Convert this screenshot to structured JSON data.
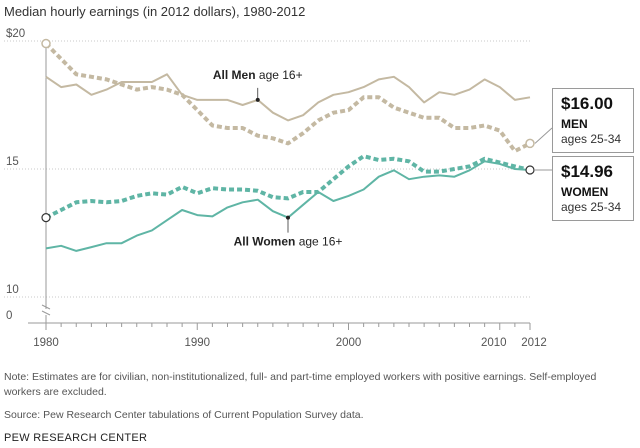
{
  "colors": {
    "men": "#c4b9a2",
    "women": "#5fb5a5",
    "frame": "#9a9a9a",
    "grid": "#c8c8c8"
  },
  "notes": {
    "note": "Note: Estimates are for civilian, non-institutionalized, full- and part-time employed workers with positive earnings. Self-employed workers are excluded.",
    "source": "Source: Pew Research Center tabulations of Current Population Survey data.",
    "credit": "PEW RESEARCH CENTER"
  },
  "callouts": {
    "men": {
      "value": "$16.00",
      "group": "MEN",
      "ages": "ages 25-34"
    },
    "women": {
      "value": "$14.96",
      "group": "WOMEN",
      "ages": "ages 25-34"
    }
  },
  "chart_data": {
    "type": "line",
    "title": "Median hourly earnings (in 2012 dollars), 1980-2012",
    "xlabel": "",
    "ylabel": "",
    "x": [
      1980,
      1981,
      1982,
      1983,
      1984,
      1985,
      1986,
      1987,
      1988,
      1989,
      1990,
      1991,
      1992,
      1993,
      1994,
      1995,
      1996,
      1997,
      1998,
      1999,
      2000,
      2001,
      2002,
      2003,
      2004,
      2005,
      2006,
      2007,
      2008,
      2009,
      2010,
      2011,
      2012
    ],
    "x_ticks": [
      {
        "value": 1980,
        "label": "1980"
      },
      {
        "value": 1990,
        "label": "1990"
      },
      {
        "value": 2000,
        "label": "2000"
      },
      {
        "value": 2010,
        "label": "2010"
      },
      {
        "value": 2012,
        "label": "2012"
      }
    ],
    "y_ticks": [
      {
        "value": 20,
        "label": "$20"
      },
      {
        "value": 15,
        "label": "15"
      },
      {
        "value": 10,
        "label": "10"
      },
      {
        "value": 0,
        "label": "0"
      }
    ],
    "ylim": [
      10,
      20
    ],
    "axis_break": true,
    "series": [
      {
        "name": "All Men age 16+",
        "style": "solid",
        "color": "#c4b9a2",
        "values": [
          18.6,
          18.2,
          18.3,
          17.9,
          18.1,
          18.4,
          18.4,
          18.4,
          18.7,
          17.9,
          17.7,
          17.7,
          17.7,
          17.5,
          17.7,
          17.2,
          16.9,
          17.1,
          17.6,
          17.9,
          18.0,
          18.2,
          18.5,
          18.6,
          18.2,
          17.6,
          18.0,
          17.9,
          18.1,
          18.5,
          18.2,
          17.7,
          17.8
        ]
      },
      {
        "name": "",
        "style": "dotted",
        "color": "#c4b9a2",
        "values": [
          19.9,
          19.3,
          18.7,
          18.6,
          18.5,
          18.3,
          18.1,
          18.2,
          18.1,
          17.9,
          17.3,
          16.7,
          16.6,
          16.6,
          16.3,
          16.2,
          16.0,
          16.4,
          16.9,
          17.2,
          17.3,
          17.8,
          17.8,
          17.4,
          17.2,
          17.0,
          17.0,
          16.6,
          16.6,
          16.7,
          16.5,
          15.7,
          16.0
        ]
      },
      {
        "name": "All Women age 16+",
        "style": "solid",
        "color": "#5fb5a5",
        "values": [
          11.9,
          12.0,
          11.8,
          11.95,
          12.1,
          12.1,
          12.4,
          12.6,
          13.0,
          13.4,
          13.2,
          13.15,
          13.5,
          13.7,
          13.8,
          13.35,
          13.1,
          13.6,
          14.1,
          13.75,
          13.95,
          14.2,
          14.7,
          14.95,
          14.6,
          14.7,
          14.75,
          14.7,
          14.95,
          15.3,
          15.2,
          15.0,
          14.96
        ]
      },
      {
        "name": "",
        "style": "dotted",
        "color": "#5fb5a5",
        "values": [
          13.1,
          13.4,
          13.7,
          13.75,
          13.7,
          13.75,
          13.95,
          14.05,
          14.0,
          14.3,
          14.05,
          14.25,
          14.2,
          14.2,
          14.15,
          13.9,
          13.85,
          14.1,
          14.1,
          14.6,
          15.1,
          15.5,
          15.35,
          15.4,
          15.3,
          14.9,
          14.9,
          15.0,
          15.1,
          15.4,
          15.25,
          15.1,
          14.96
        ]
      }
    ],
    "annotations": [
      {
        "series": 0,
        "year": 1994,
        "bold": "All Men",
        "rest": " age 16+"
      },
      {
        "series": 2,
        "year": 1996,
        "bold": "All Women",
        "rest": " age 16+"
      }
    ]
  }
}
